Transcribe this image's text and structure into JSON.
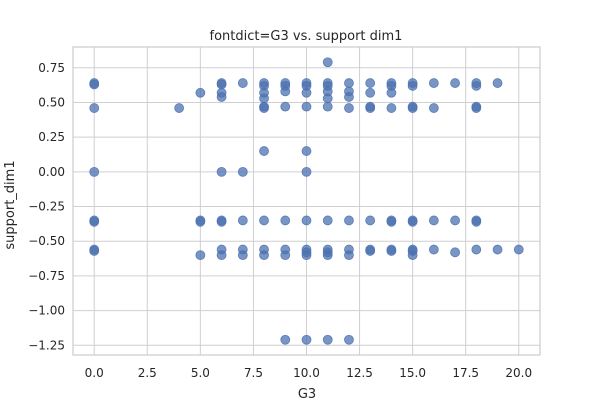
{
  "chart_data": {
    "type": "scatter",
    "title": "fontdict=G3 vs. support dim1",
    "xlabel": "G3",
    "ylabel": "support_dim1",
    "xlim": [
      -1,
      21
    ],
    "ylim": [
      -1.32,
      0.9
    ],
    "xticks": [
      0.0,
      2.5,
      5.0,
      7.5,
      10.0,
      12.5,
      15.0,
      17.5,
      20.0
    ],
    "xtick_labels": [
      "0.0",
      "2.5",
      "5.0",
      "7.5",
      "10.0",
      "12.5",
      "15.0",
      "17.5",
      "20.0"
    ],
    "yticks": [
      0.75,
      0.5,
      0.25,
      0.0,
      -0.25,
      -0.5,
      -0.75,
      -1.0,
      -1.25
    ],
    "ytick_labels": [
      "0.75",
      "0.50",
      "0.25",
      "0.00",
      "−0.25",
      "−0.50",
      "−0.75",
      "−1.00",
      "−1.25"
    ],
    "grid": true,
    "color": "#4c72b0",
    "points": [
      [
        0,
        0.64
      ],
      [
        0,
        0.63
      ],
      [
        0,
        0.46
      ],
      [
        0,
        0.0
      ],
      [
        0,
        -0.35
      ],
      [
        0,
        -0.36
      ],
      [
        0,
        -0.56
      ],
      [
        0,
        -0.57
      ],
      [
        4,
        0.46
      ],
      [
        5,
        0.57
      ],
      [
        5,
        -0.35
      ],
      [
        5,
        -0.36
      ],
      [
        5,
        -0.6
      ],
      [
        6,
        0.64
      ],
      [
        6,
        0.63
      ],
      [
        6,
        0.57
      ],
      [
        6,
        0.54
      ],
      [
        6,
        0.0
      ],
      [
        6,
        -0.35
      ],
      [
        6,
        -0.36
      ],
      [
        6,
        -0.56
      ],
      [
        6,
        -0.6
      ],
      [
        7,
        0.64
      ],
      [
        7,
        0.0
      ],
      [
        7,
        -0.35
      ],
      [
        7,
        -0.56
      ],
      [
        7,
        -0.6
      ],
      [
        8,
        0.64
      ],
      [
        8,
        0.62
      ],
      [
        8,
        0.57
      ],
      [
        8,
        0.53
      ],
      [
        8,
        0.47
      ],
      [
        8,
        0.46
      ],
      [
        8,
        0.15
      ],
      [
        8,
        -0.35
      ],
      [
        8,
        -0.56
      ],
      [
        8,
        -0.6
      ],
      [
        9,
        0.64
      ],
      [
        9,
        0.62
      ],
      [
        9,
        0.58
      ],
      [
        9,
        0.47
      ],
      [
        9,
        -0.35
      ],
      [
        9,
        -0.56
      ],
      [
        9,
        -0.6
      ],
      [
        9,
        -1.21
      ],
      [
        10,
        0.64
      ],
      [
        10,
        0.62
      ],
      [
        10,
        0.57
      ],
      [
        10,
        0.47
      ],
      [
        10,
        0.15
      ],
      [
        10,
        0.0
      ],
      [
        10,
        -0.35
      ],
      [
        10,
        -0.56
      ],
      [
        10,
        -0.58
      ],
      [
        10,
        -0.6
      ],
      [
        10,
        -1.21
      ],
      [
        11,
        0.79
      ],
      [
        11,
        0.64
      ],
      [
        11,
        0.62
      ],
      [
        11,
        0.58
      ],
      [
        11,
        0.53
      ],
      [
        11,
        0.47
      ],
      [
        11,
        -0.35
      ],
      [
        11,
        -0.56
      ],
      [
        11,
        -0.58
      ],
      [
        11,
        -0.6
      ],
      [
        11,
        -1.21
      ],
      [
        12,
        0.64
      ],
      [
        12,
        0.58
      ],
      [
        12,
        0.54
      ],
      [
        12,
        0.46
      ],
      [
        12,
        -0.35
      ],
      [
        12,
        -0.56
      ],
      [
        12,
        -0.6
      ],
      [
        12,
        -1.21
      ],
      [
        13,
        0.64
      ],
      [
        13,
        0.57
      ],
      [
        13,
        0.47
      ],
      [
        13,
        0.46
      ],
      [
        13,
        -0.35
      ],
      [
        13,
        -0.56
      ],
      [
        13,
        -0.57
      ],
      [
        14,
        0.64
      ],
      [
        14,
        0.62
      ],
      [
        14,
        0.57
      ],
      [
        14,
        0.46
      ],
      [
        14,
        -0.35
      ],
      [
        14,
        -0.36
      ],
      [
        14,
        -0.56
      ],
      [
        14,
        -0.57
      ],
      [
        15,
        0.64
      ],
      [
        15,
        0.62
      ],
      [
        15,
        0.47
      ],
      [
        15,
        0.46
      ],
      [
        15,
        -0.35
      ],
      [
        15,
        -0.36
      ],
      [
        15,
        -0.56
      ],
      [
        15,
        -0.57
      ],
      [
        15,
        -0.6
      ],
      [
        16,
        0.64
      ],
      [
        16,
        0.46
      ],
      [
        16,
        -0.35
      ],
      [
        16,
        -0.56
      ],
      [
        17,
        0.64
      ],
      [
        17,
        -0.35
      ],
      [
        17,
        -0.58
      ],
      [
        18,
        0.64
      ],
      [
        18,
        0.62
      ],
      [
        18,
        0.47
      ],
      [
        18,
        0.46
      ],
      [
        18,
        -0.35
      ],
      [
        18,
        -0.36
      ],
      [
        18,
        -0.56
      ],
      [
        19,
        0.64
      ],
      [
        19,
        -0.56
      ],
      [
        20,
        -0.56
      ]
    ]
  }
}
